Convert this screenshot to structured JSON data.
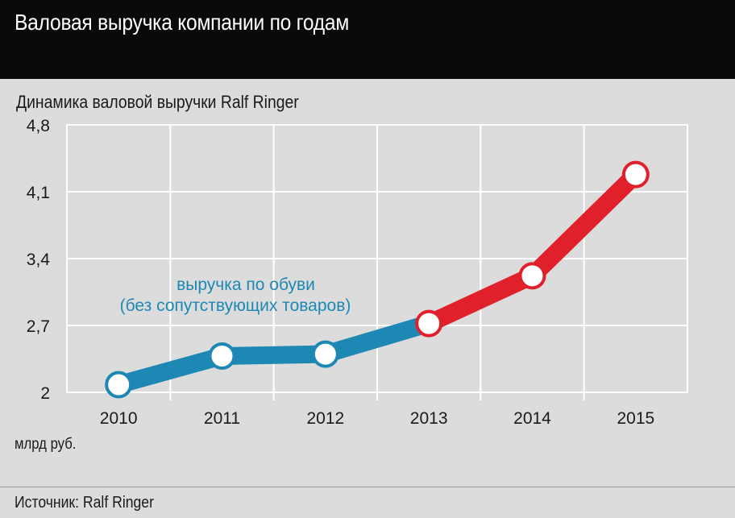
{
  "header": {
    "title": "Валовая выручка компании по годам"
  },
  "chart_data": {
    "type": "line",
    "title": "Динамика валовой выручки Ralf Ringer",
    "ylabel": "млрд руб.",
    "categories": [
      "2010",
      "2011",
      "2012",
      "2013",
      "2014",
      "2015"
    ],
    "series": [
      {
        "values": [
          2.08,
          2.38,
          2.4,
          2.72,
          3.22,
          4.28
        ],
        "color_solid": "#1e88b4",
        "color_segment_after_index_3": "#e0202a"
      }
    ],
    "y_ticks": [
      "4,8",
      "4,1",
      "3,4",
      "2,7",
      "2"
    ],
    "y_tick_values": [
      4.8,
      4.1,
      3.4,
      2.7,
      2.0
    ],
    "ylim": [
      2.0,
      4.8
    ],
    "grid": true,
    "annotation": {
      "line1": "выручка по обуви",
      "line2": "(без сопутствующих товаров)"
    },
    "colors": {
      "blue": "#1e88b4",
      "red": "#e0202a",
      "marker_fill": "#ffffff",
      "grid": "#ffffff",
      "background": "#dcdcdc"
    }
  },
  "footer": {
    "source": "Источник: Ralf Ringer"
  }
}
